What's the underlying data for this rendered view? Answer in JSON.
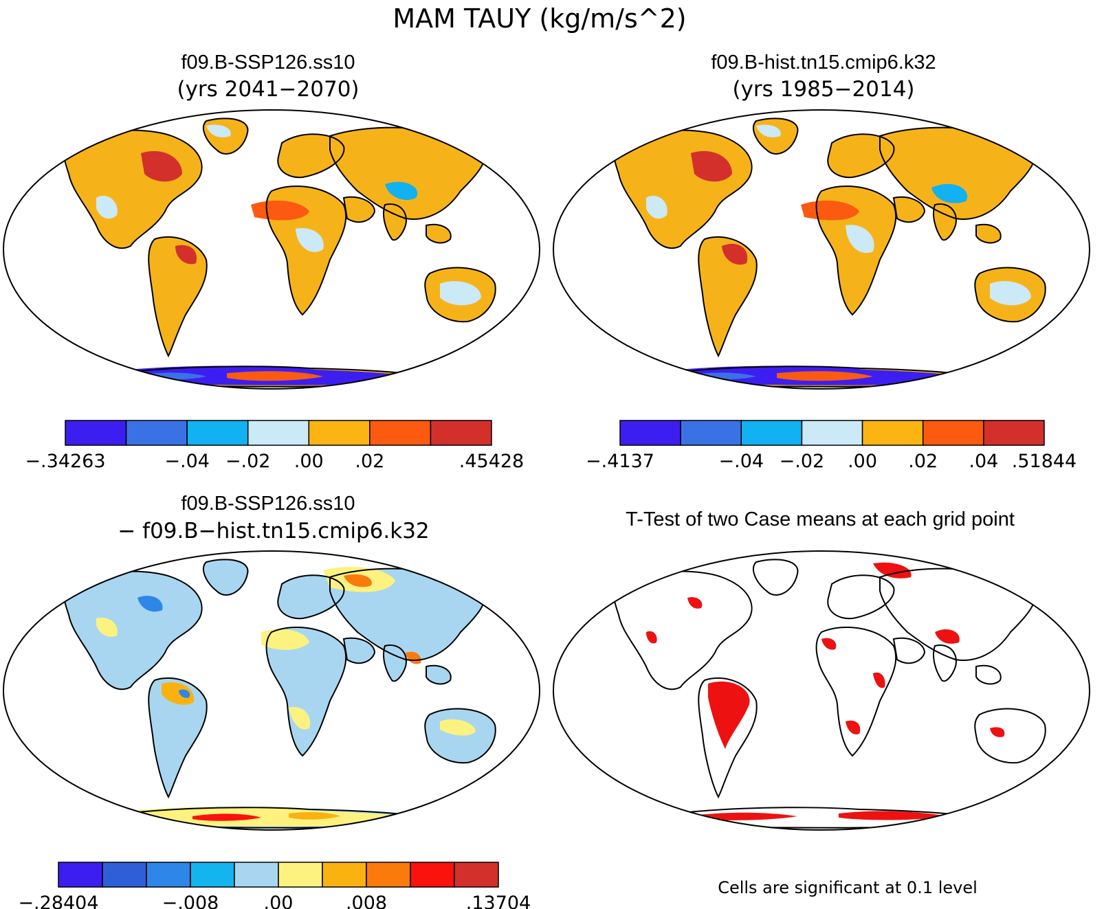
{
  "figure": {
    "title": "MAM TAUY (kg/m/s^2)"
  },
  "panels": [
    {
      "id": "p1",
      "title": "f09.B-SSP126.ss10",
      "subtitle": "(yrs 2041−2070)",
      "map_type": "field",
      "colorbar": {
        "colors": [
          "#3d1ef0",
          "#3a72e6",
          "#12b1f1",
          "#cce9f7",
          "#fbb412",
          "#fb5a10",
          "#d3302b"
        ],
        "labels": [
          "−.34263",
          "",
          "−.04",
          "−.02",
          ".00",
          ".02",
          "",
          ".45428"
        ]
      }
    },
    {
      "id": "p2",
      "title": "f09.B-hist.tn15.cmip6.k32",
      "subtitle": "(yrs 1985−2014)",
      "map_type": "field",
      "colorbar": {
        "colors": [
          "#3d1ef0",
          "#3a72e6",
          "#12b1f1",
          "#cce9f7",
          "#fbb412",
          "#fb5a10",
          "#d3302b"
        ],
        "labels": [
          "−.4137",
          "",
          "−.04",
          "−.02",
          ".00",
          ".02",
          ".04",
          ".51844"
        ]
      }
    },
    {
      "id": "p3",
      "title": "f09.B-SSP126.ss10",
      "subtitle": "− f09.B−hist.tn15.cmip6.k32",
      "map_type": "difference",
      "colorbar": {
        "colors": [
          "#3d1ef0",
          "#2f5fd8",
          "#2e86e8",
          "#14b5ef",
          "#a8d6f1",
          "#fdf27f",
          "#fab211",
          "#fb7a0c",
          "#f9130c",
          "#d3302b"
        ],
        "labels": [
          "−.28404",
          "",
          "",
          "−.008",
          "",
          ".00",
          "",
          ".008",
          "",
          "",
          ".13704"
        ]
      }
    },
    {
      "id": "p4",
      "title": "T-Test of two Case means at each grid point",
      "map_type": "significance",
      "note": "Cells are significant at 0.1 level",
      "colors": {
        "significant": "#ee1111"
      }
    }
  ]
}
